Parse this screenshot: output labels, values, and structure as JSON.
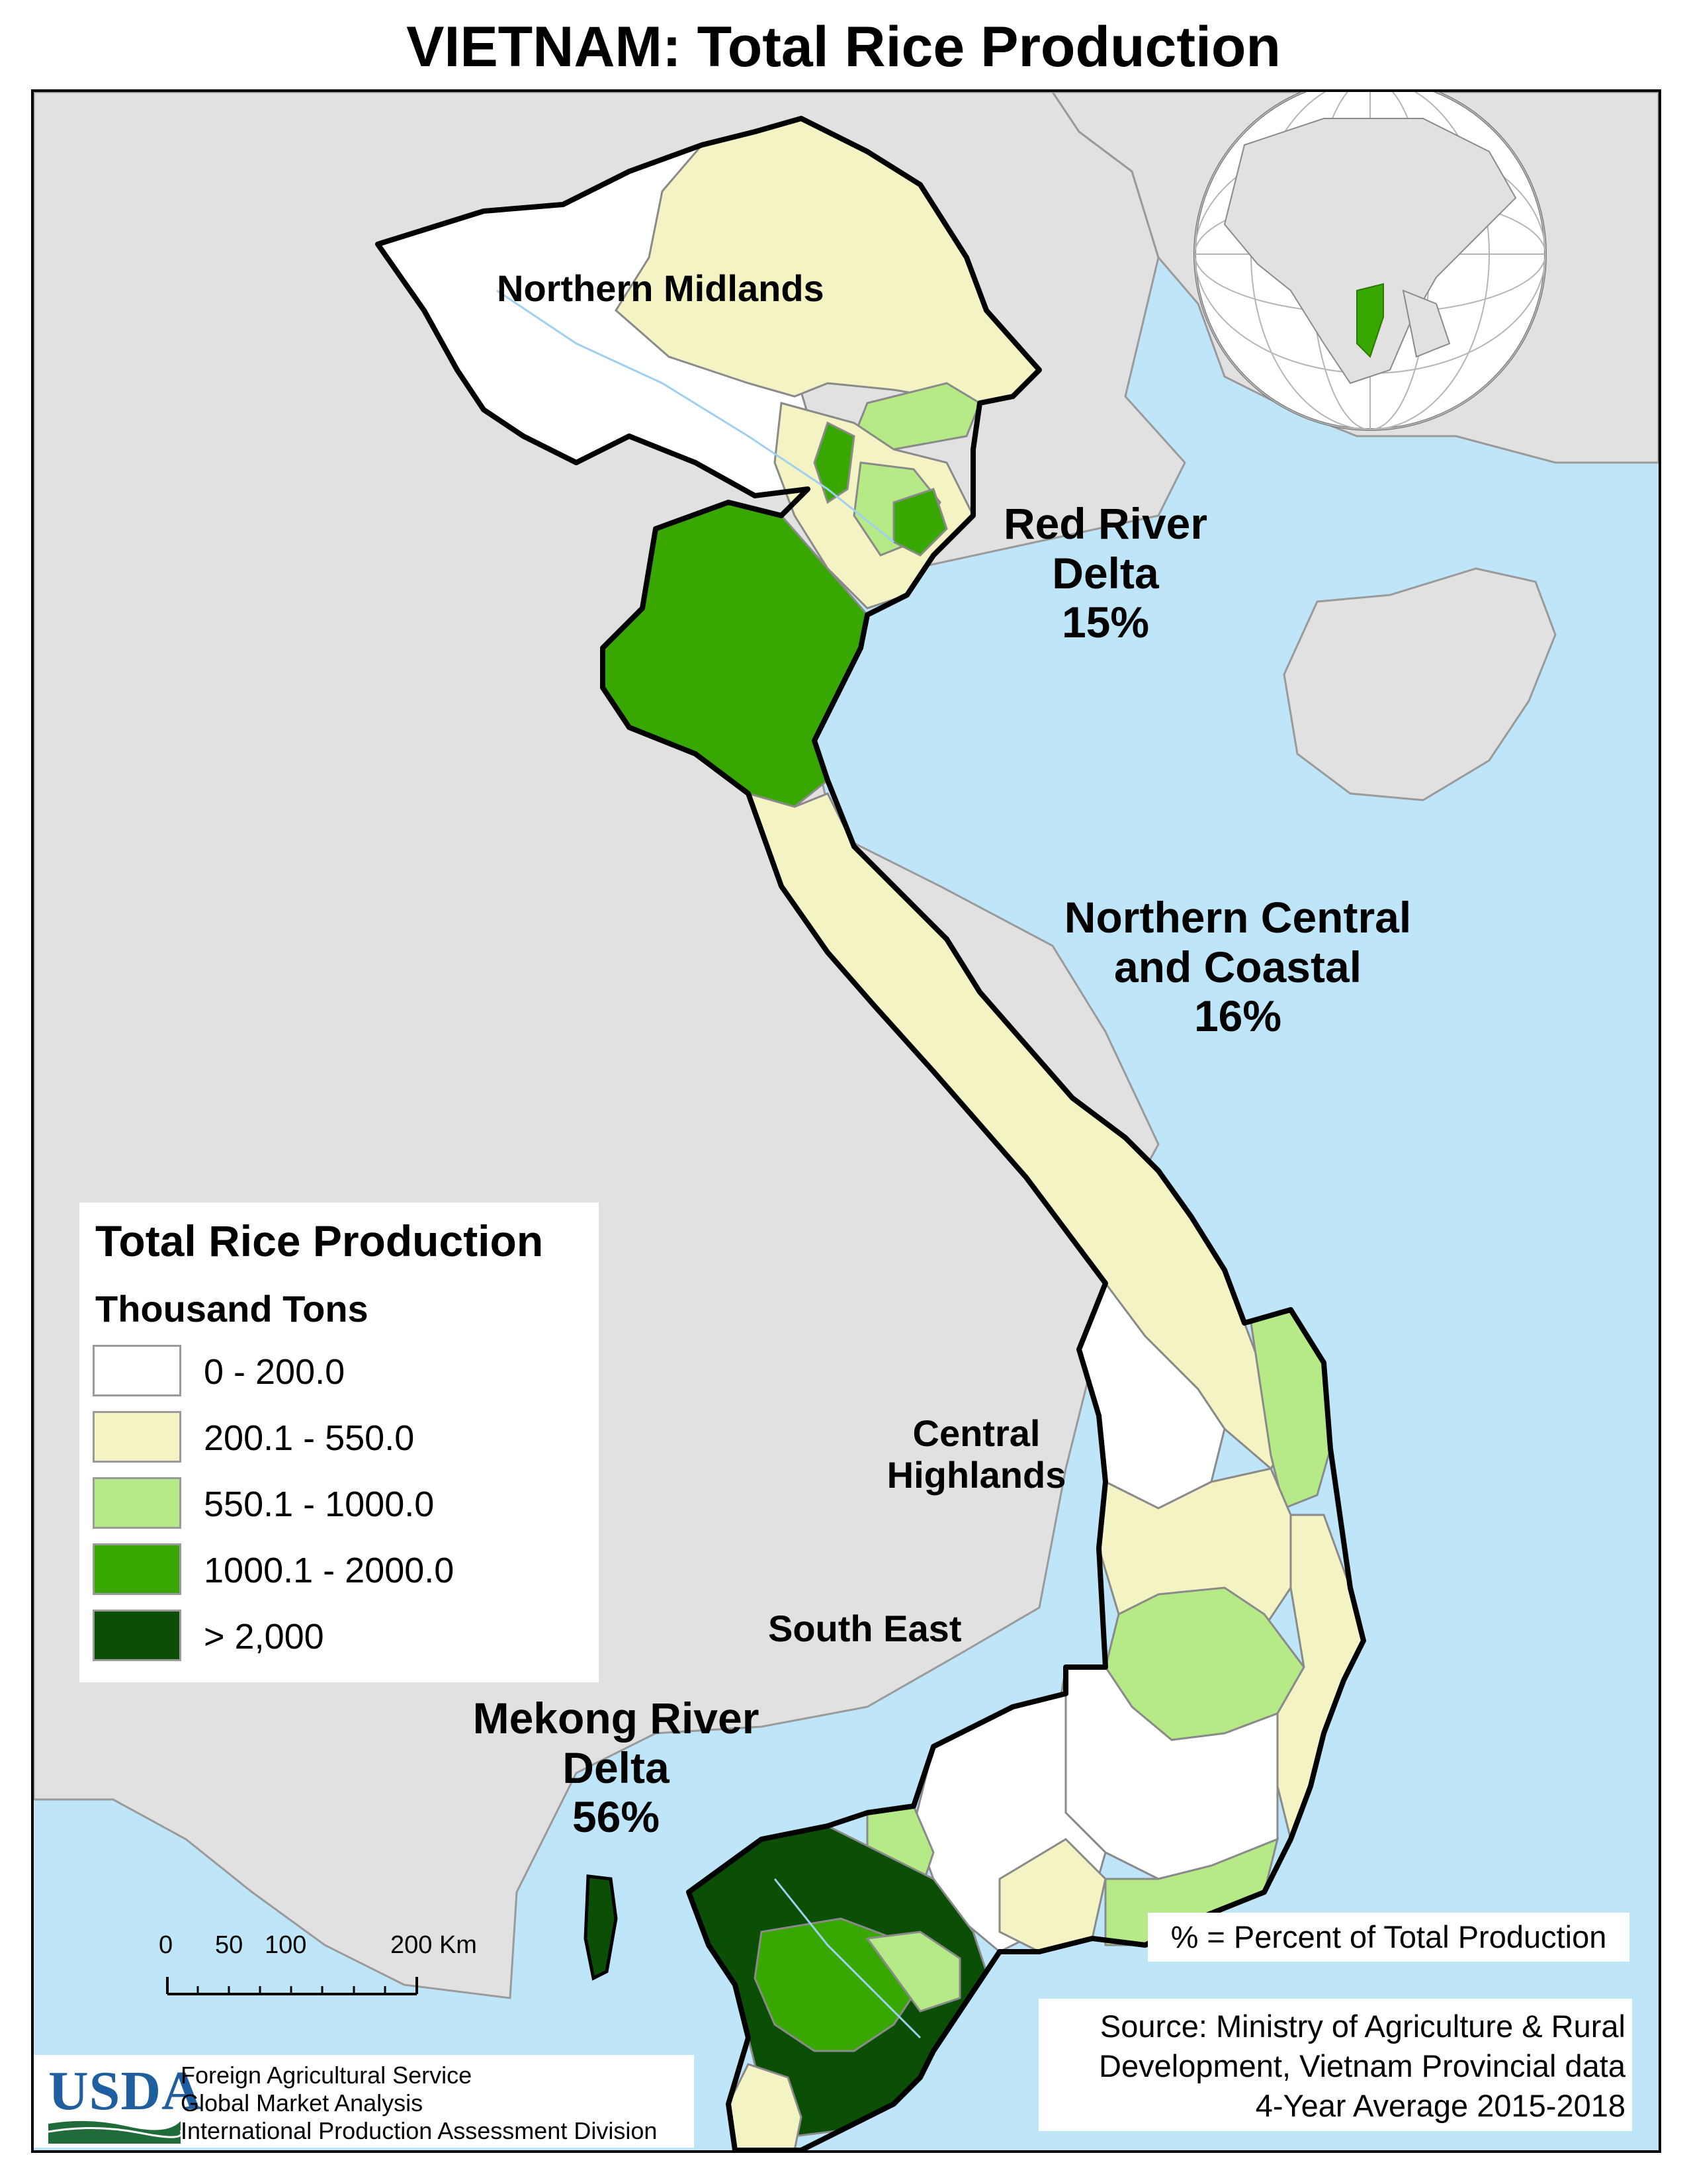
{
  "title": "VIETNAM: Total Rice Production",
  "regions": [
    {
      "name": "Northern Midlands",
      "percent": ""
    },
    {
      "name": "Red River\nDelta",
      "percent": "15%"
    },
    {
      "name": "Northern Central\nand Coastal",
      "percent": "16%"
    },
    {
      "name": "Central\nHighlands",
      "percent": ""
    },
    {
      "name": "South East",
      "percent": ""
    },
    {
      "name": "Mekong River\nDelta",
      "percent": "56%"
    }
  ],
  "region_labels": {
    "northern_midlands": "Northern Midlands",
    "red_river_1": "Red River",
    "red_river_2": "Delta",
    "red_river_pct": "15%",
    "north_central_1": "Northern Central",
    "north_central_2": "and Coastal",
    "north_central_pct": "16%",
    "central_highlands_1": "Central",
    "central_highlands_2": "Highlands",
    "south_east": "South East",
    "mekong_1": "Mekong River",
    "mekong_2": "Delta",
    "mekong_pct": "56%"
  },
  "legend": {
    "title": "Total Rice Production",
    "subtitle": "Thousand Tons",
    "classes": [
      {
        "label": "0 - 200.0",
        "color": "#ffffff"
      },
      {
        "label": "200.1 - 550.0",
        "color": "#f4f3c4"
      },
      {
        "label": "550.1 - 1000.0",
        "color": "#b6ea86"
      },
      {
        "label": "1000.1 - 2000.0",
        "color": "#38a800"
      },
      {
        "label": "> 2,000",
        "color": "#0b4f06"
      }
    ]
  },
  "scale_bar": {
    "ticks": [
      "0",
      "50",
      "100",
      "200 Km"
    ]
  },
  "notes": {
    "percent_note": "% = Percent of Total Production",
    "source_1": "Source: Ministry of Agriculture & Rural",
    "source_2": "Development, Vietnam Provincial data",
    "source_3": "4-Year Average 2015-2018"
  },
  "credits": {
    "logo": "USDA",
    "line1": "Foreign Agricultural Service",
    "line2": "Global Market Analysis",
    "line3": "International Production Assessment Division"
  },
  "colors": {
    "sea": "#bfe6f8",
    "land": "#e1e1e1",
    "border": "#000000"
  }
}
